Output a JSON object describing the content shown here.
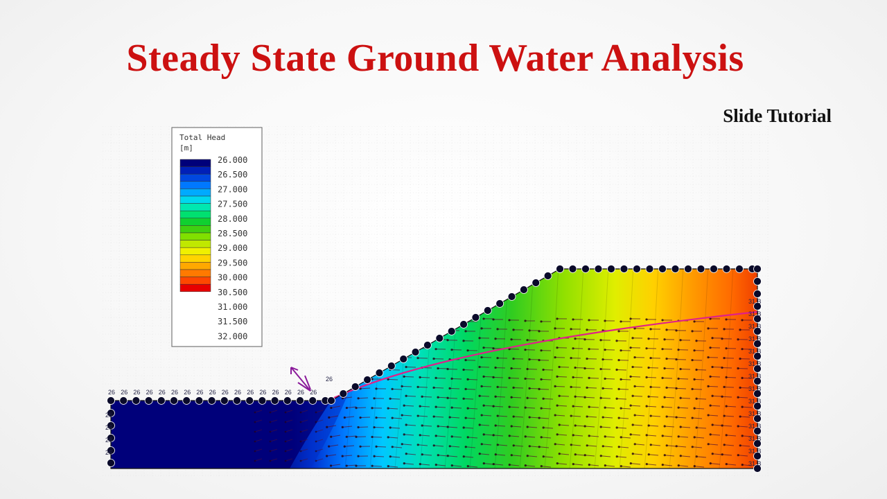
{
  "slide": {
    "title": "Steady State Ground Water Analysis",
    "subtitle": "Slide Tutorial",
    "title_color": "#cc1111"
  },
  "legend": {
    "title_line1": "Total Head",
    "title_line2": "[m]",
    "values": [
      "26.000",
      "26.500",
      "27.000",
      "27.500",
      "28.000",
      "28.500",
      "29.000",
      "29.500",
      "30.000",
      "30.500",
      "31.000",
      "31.500",
      "32.000"
    ],
    "colors": [
      "#00007a",
      "#0020b8",
      "#0048e0",
      "#0078ff",
      "#00aaff",
      "#00d8ee",
      "#00e8b0",
      "#00e070",
      "#10d030",
      "#40d010",
      "#80e000",
      "#c0e800",
      "#f0f000",
      "#ffd400",
      "#ffa800",
      "#ff7a00",
      "#ff4800",
      "#e80000"
    ]
  },
  "model": {
    "toe_label": "26",
    "left_boundary_label": "26",
    "right_boundary_label": "31 B",
    "head_range": [
      26,
      31.8
    ],
    "phreatic_line_color": "#e0208a",
    "flow_arrow_color": "#551133",
    "node_fill": "#0a0a2a"
  }
}
